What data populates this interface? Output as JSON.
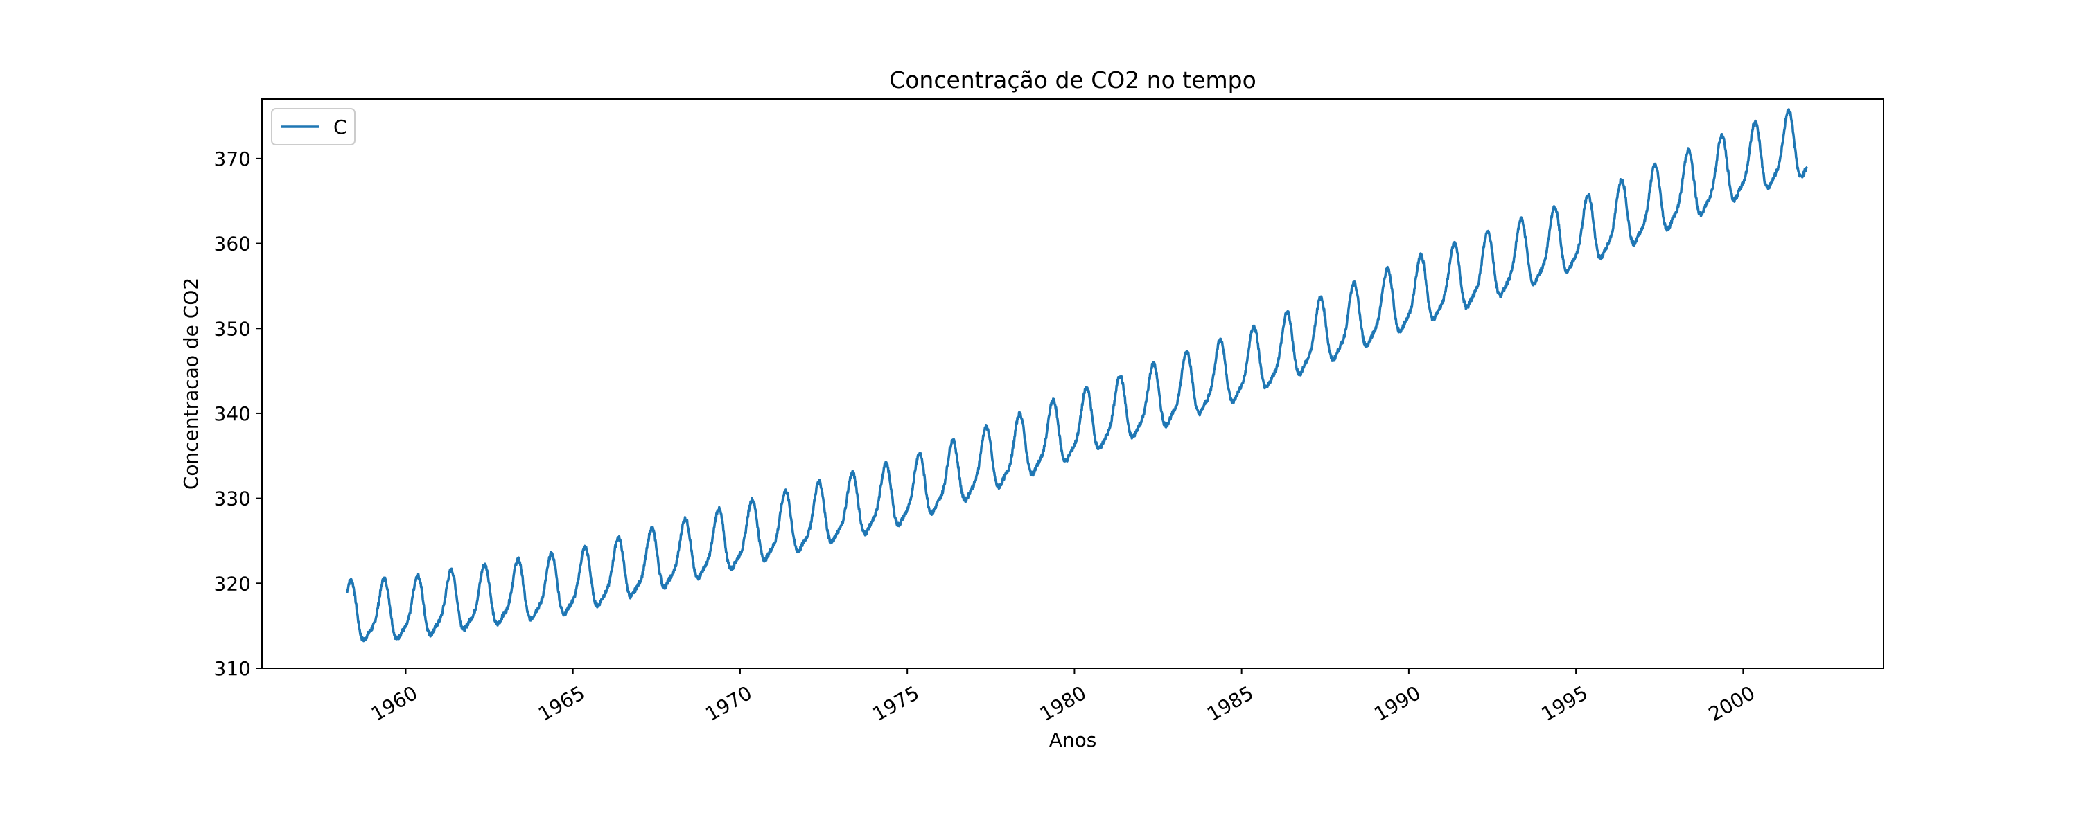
{
  "chart_data": {
    "type": "line",
    "title": "Concentração de CO2 no  tempo",
    "xlabel": "Anos",
    "ylabel": "Concentracao de CO2",
    "xlim": [
      1955.7,
      2004.2
    ],
    "ylim": [
      310,
      377
    ],
    "xticks": [
      1960,
      1965,
      1970,
      1975,
      1980,
      1985,
      1990,
      1995,
      2000
    ],
    "yticks": [
      310,
      320,
      330,
      340,
      350,
      360,
      370
    ],
    "grid": false,
    "legend_position": "top-left",
    "series": [
      {
        "name": "C",
        "color": "#1f77b4",
        "x_start": 1958.25,
        "x_end": 2001.9,
        "trend": [
          [
            1958.25,
            316.2
          ],
          [
            1960.0,
            316.5
          ],
          [
            1965.0,
            319.6
          ],
          [
            1970.0,
            325.1
          ],
          [
            1975.0,
            330.3
          ],
          [
            1980.0,
            338.0
          ],
          [
            1985.0,
            345.0
          ],
          [
            1990.0,
            353.4
          ],
          [
            1995.0,
            360.4
          ],
          [
            2000.0,
            369.0
          ],
          [
            2001.9,
            371.5
          ]
        ],
        "seasonal_amplitude": 3.3,
        "seasonal_peak_month": 5
      }
    ]
  }
}
